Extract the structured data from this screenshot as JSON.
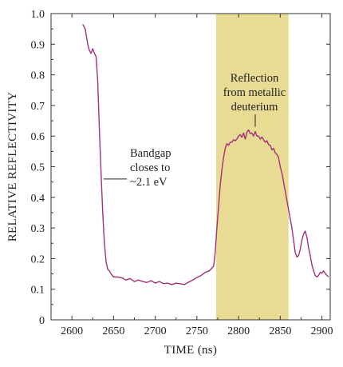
{
  "chart_data": {
    "type": "line",
    "xlabel": "TIME (ns)",
    "ylabel": "RELATIVE REFLECTIVITY",
    "xlim": [
      2575,
      2910
    ],
    "ylim": [
      0,
      1.0
    ],
    "xticks": [
      2600,
      2650,
      2700,
      2750,
      2800,
      2850,
      2900
    ],
    "xtick_labels": [
      "2600",
      "2650",
      "2700",
      "2750",
      "2800",
      "2850",
      "2900"
    ],
    "yticks": [
      0,
      0.1,
      0.2,
      0.3,
      0.4,
      0.5,
      0.6,
      0.7,
      0.8,
      0.9,
      1.0
    ],
    "ytick_labels": [
      "0",
      "0.1",
      "0.2",
      "0.3",
      "0.4",
      "0.5",
      "0.6",
      "0.7",
      "0.8",
      "0.9",
      "1.0"
    ],
    "grid": false,
    "line_color": "#a3307a",
    "highlight": {
      "x_start": 2773,
      "x_end": 2860,
      "color": "#e8dc94"
    },
    "series": [
      {
        "x": [
          2613,
          2616,
          2619,
          2621,
          2623,
          2625,
          2627,
          2629,
          2631,
          2633,
          2635,
          2637,
          2639,
          2641,
          2643,
          2645,
          2647,
          2650,
          2655,
          2660,
          2665,
          2670,
          2675,
          2680,
          2685,
          2690,
          2695,
          2700,
          2705,
          2710,
          2715,
          2720,
          2725,
          2730,
          2735,
          2740,
          2745,
          2750,
          2755,
          2760,
          2765,
          2770,
          2772,
          2774,
          2776,
          2778,
          2780,
          2782,
          2784,
          2786,
          2788,
          2790,
          2792,
          2794,
          2796,
          2798,
          2800,
          2802,
          2804,
          2806,
          2808,
          2810,
          2812,
          2814,
          2816,
          2818,
          2820,
          2822,
          2824,
          2826,
          2828,
          2830,
          2832,
          2834,
          2836,
          2838,
          2840,
          2842,
          2844,
          2846,
          2848,
          2850,
          2852,
          2854,
          2856,
          2858,
          2860,
          2862,
          2864,
          2866,
          2868,
          2870,
          2872,
          2874,
          2876,
          2878,
          2880,
          2882,
          2884,
          2886,
          2888,
          2890,
          2892,
          2894,
          2896,
          2898,
          2900,
          2902,
          2904,
          2906,
          2908
        ],
        "values": [
          0.965,
          0.95,
          0.9,
          0.88,
          0.87,
          0.885,
          0.87,
          0.86,
          0.78,
          0.62,
          0.48,
          0.35,
          0.25,
          0.19,
          0.165,
          0.16,
          0.15,
          0.14,
          0.14,
          0.137,
          0.13,
          0.135,
          0.125,
          0.13,
          0.125,
          0.122,
          0.128,
          0.12,
          0.125,
          0.118,
          0.12,
          0.115,
          0.12,
          0.118,
          0.115,
          0.123,
          0.13,
          0.138,
          0.145,
          0.155,
          0.16,
          0.175,
          0.22,
          0.3,
          0.37,
          0.44,
          0.49,
          0.53,
          0.56,
          0.575,
          0.57,
          0.58,
          0.58,
          0.588,
          0.585,
          0.59,
          0.6,
          0.605,
          0.596,
          0.61,
          0.59,
          0.613,
          0.62,
          0.608,
          0.61,
          0.6,
          0.615,
          0.6,
          0.6,
          0.59,
          0.597,
          0.588,
          0.58,
          0.585,
          0.572,
          0.57,
          0.555,
          0.56,
          0.545,
          0.54,
          0.53,
          0.5,
          0.48,
          0.45,
          0.42,
          0.39,
          0.36,
          0.33,
          0.3,
          0.26,
          0.22,
          0.205,
          0.21,
          0.23,
          0.26,
          0.28,
          0.29,
          0.27,
          0.235,
          0.21,
          0.18,
          0.16,
          0.145,
          0.14,
          0.145,
          0.155,
          0.152,
          0.16,
          0.152,
          0.145,
          0.14
        ]
      }
    ],
    "annotations": [
      {
        "lines": [
          "Bandgap",
          "closes to",
          "~2.1 eV"
        ],
        "target": [
          2638,
          0.46
        ]
      },
      {
        "lines": [
          "Reflection",
          "from metallic",
          "deuterium"
        ],
        "target": [
          2820,
          0.625
        ]
      }
    ]
  }
}
